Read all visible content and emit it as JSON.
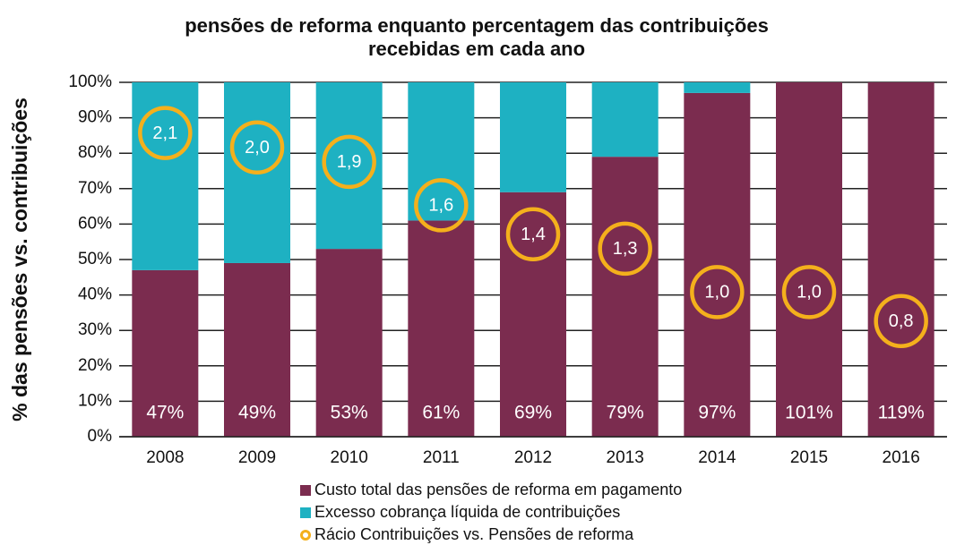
{
  "chart_data": {
    "type": "bar",
    "stacked": true,
    "title": [
      "pensões de reforma enquanto percentagem das contribuições",
      "recebidas em cada ano"
    ],
    "y_label": "% das pensões vs. contribuições",
    "categories": [
      "2008",
      "2009",
      "2010",
      "2011",
      "2012",
      "2013",
      "2014",
      "2015",
      "2016"
    ],
    "series": [
      {
        "name": "Custo total das pensões de reforma em pagamento",
        "color": "#7b2c4f",
        "values": [
          47,
          49,
          53,
          61,
          69,
          79,
          97,
          101,
          119
        ],
        "value_labels": [
          "47%",
          "49%",
          "53%",
          "61%",
          "69%",
          "79%",
          "97%",
          "101%",
          "119%"
        ]
      },
      {
        "name": "Excesso cobrança líquida de contribuições",
        "color": "#1eb1c2",
        "values": [
          53,
          51,
          47,
          39,
          31,
          21,
          3,
          0,
          0
        ]
      },
      {
        "name": "Rácio Contribuições vs. Pensões de reforma",
        "color": "#f4b01c",
        "axis": "y2",
        "marker": "circle",
        "values": [
          2.1,
          2.0,
          1.9,
          1.6,
          1.4,
          1.3,
          1.0,
          1.0,
          0.8
        ],
        "value_labels": [
          "2,1",
          "2,0",
          "1,9",
          "1,6",
          "1,4",
          "1,3",
          "1,0",
          "1,0",
          "0,8"
        ]
      }
    ],
    "ylim": [
      0,
      100
    ],
    "yticks": [
      {
        "value": 0,
        "label": "0%"
      },
      {
        "value": 10,
        "label": "10%"
      },
      {
        "value": 20,
        "label": "20%"
      },
      {
        "value": 30,
        "label": "30%"
      },
      {
        "value": 40,
        "label": "40%"
      },
      {
        "value": 50,
        "label": "50%"
      },
      {
        "value": 60,
        "label": "60%"
      },
      {
        "value": 70,
        "label": "70%"
      },
      {
        "value": 80,
        "label": "80%"
      },
      {
        "value": 90,
        "label": "90%"
      },
      {
        "value": 100,
        "label": "100%"
      }
    ],
    "y2lim": [
      0,
      2.45
    ],
    "grid": true,
    "legend": "bottom"
  }
}
